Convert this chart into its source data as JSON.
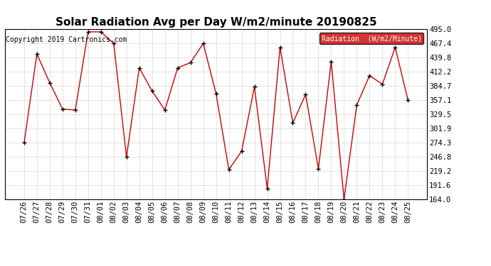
{
  "title": "Solar Radiation Avg per Day W/m2/minute 20190825",
  "copyright_text": "Copyright 2019 Cartronics.com",
  "legend_label": "Radiation  (W/m2/Minute)",
  "legend_bg_color": "#cc0000",
  "legend_text_color": "#ffffff",
  "line_color": "#cc0000",
  "marker_color": "#000000",
  "bg_color": "#ffffff",
  "grid_color": "#bbbbbb",
  "dates": [
    "07/26",
    "07/27",
    "07/28",
    "07/29",
    "07/30",
    "07/31",
    "08/01",
    "08/02",
    "08/03",
    "08/04",
    "08/05",
    "08/06",
    "08/07",
    "08/08",
    "08/09",
    "08/10",
    "08/11",
    "08/12",
    "08/13",
    "08/14",
    "08/15",
    "08/16",
    "08/17",
    "08/18",
    "08/19",
    "08/20",
    "08/21",
    "08/22",
    "08/23",
    "08/24",
    "08/25"
  ],
  "values": [
    274.3,
    447.0,
    391.0,
    340.0,
    338.0,
    490.0,
    490.0,
    467.4,
    246.8,
    420.0,
    375.0,
    338.0,
    420.0,
    430.0,
    467.4,
    370.0,
    222.0,
    258.0,
    383.0,
    185.0,
    460.0,
    313.0,
    368.0,
    224.0,
    432.0,
    164.0,
    348.0,
    405.0,
    388.0,
    460.0,
    357.1
  ],
  "ylim": [
    164.0,
    495.0
  ],
  "yticks": [
    164.0,
    191.6,
    219.2,
    246.8,
    274.3,
    301.9,
    329.5,
    357.1,
    384.7,
    412.2,
    439.8,
    467.4,
    495.0
  ],
  "title_fontsize": 11,
  "tick_fontsize": 7.5,
  "copyright_fontsize": 7
}
